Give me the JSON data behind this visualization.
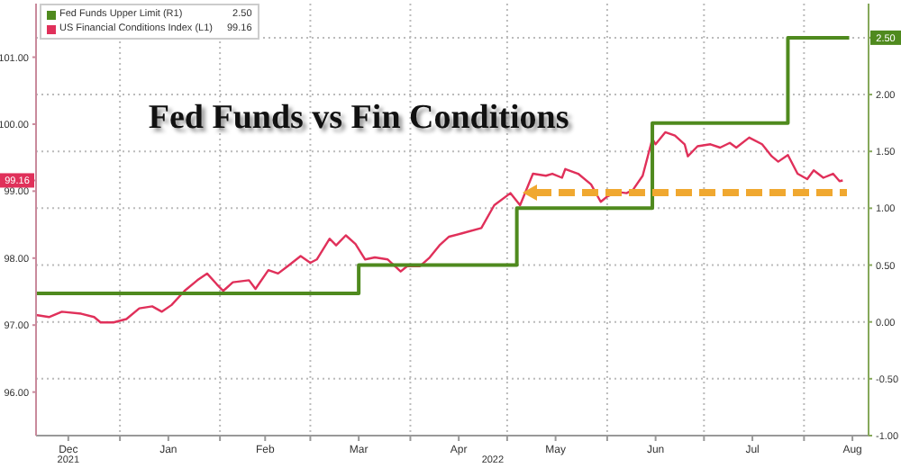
{
  "chart_data": {
    "type": "line",
    "title": "Fed Funds vs Fin Conditions",
    "annotations": [
      "2021",
      "2022"
    ],
    "xlim": [
      "2021-12-06",
      "2022-08-21"
    ],
    "xticks": [
      {
        "value": "2021-12-16",
        "label": "Dec"
      },
      {
        "value": "2022-01-01",
        "label": null
      },
      {
        "value": "2022-01-16",
        "label": "Jan"
      },
      {
        "value": "2022-02-01",
        "label": null
      },
      {
        "value": "2022-02-15",
        "label": "Feb"
      },
      {
        "value": "2022-03-01",
        "label": null
      },
      {
        "value": "2022-03-16",
        "label": "Mar"
      },
      {
        "value": "2022-04-01",
        "label": null
      },
      {
        "value": "2022-04-16",
        "label": "Apr"
      },
      {
        "value": "2022-05-01",
        "label": null
      },
      {
        "value": "2022-05-16",
        "label": "May"
      },
      {
        "value": "2022-06-01",
        "label": null
      },
      {
        "value": "2022-06-16",
        "label": "Jun"
      },
      {
        "value": "2022-07-01",
        "label": null
      },
      {
        "value": "2022-07-16",
        "label": "Jul"
      },
      {
        "value": "2022-08-01",
        "label": null
      },
      {
        "value": "2022-08-16",
        "label": "Aug"
      }
    ],
    "ylim": [
      95.35,
      101.8
    ],
    "yticks": [
      {
        "value": 96,
        "label": "96.00"
      },
      {
        "value": 97,
        "label": "97.00"
      },
      {
        "value": 98,
        "label": "98.00"
      },
      {
        "value": 99,
        "label": "99.00"
      },
      {
        "value": 99.16,
        "label": "99.16"
      },
      {
        "value": 100,
        "label": "100.00"
      },
      {
        "value": 101,
        "label": "101.00"
      }
    ],
    "y2lim": [
      -1,
      2.8
    ],
    "y2ticks": [
      {
        "value": -1,
        "label": "-1.00"
      },
      {
        "value": -0.5,
        "label": "-0.50"
      },
      {
        "value": 0,
        "label": "0.00"
      },
      {
        "value": 0.5,
        "label": "0.50"
      },
      {
        "value": 1,
        "label": "1.00"
      },
      {
        "value": 1.5,
        "label": "1.50"
      },
      {
        "value": 2,
        "label": "2.00"
      },
      {
        "value": 2.5,
        "label": "2.50"
      }
    ],
    "grid": true,
    "legend": "top left",
    "marker": "none",
    "series": [
      {
        "name": "Fed Funds Upper Limit (R1)",
        "type": "step",
        "axis": "y2",
        "color": "#4f8a1e",
        "x": [
          "2021-12-06",
          "2022-03-16",
          "2022-05-04",
          "2022-06-15",
          "2022-07-27",
          "2022-08-15"
        ],
        "values": [
          0.25,
          0.5,
          1.0,
          1.75,
          2.5,
          2.5
        ]
      },
      {
        "name": "US Financial Conditions Index (L1)",
        "type": "line",
        "axis": "y",
        "color": "#e0305a",
        "x": [
          "2021-12-06",
          "2021-12-10",
          "2021-12-14",
          "2021-12-20",
          "2021-12-24",
          "2021-12-26",
          "2021-12-30",
          "2022-01-03",
          "2022-01-07",
          "2022-01-11",
          "2022-01-14",
          "2022-01-17",
          "2022-01-21",
          "2022-01-25",
          "2022-01-28",
          "2022-01-31",
          "2022-02-02",
          "2022-02-05",
          "2022-02-10",
          "2022-02-12",
          "2022-02-16",
          "2022-02-19",
          "2022-02-22",
          "2022-02-26",
          "2022-03-01",
          "2022-03-03",
          "2022-03-07",
          "2022-03-09",
          "2022-03-12",
          "2022-03-15",
          "2022-03-18",
          "2022-03-21",
          "2022-03-25",
          "2022-03-29",
          "2022-03-31",
          "2022-04-04",
          "2022-04-07",
          "2022-04-10",
          "2022-04-13",
          "2022-04-17",
          "2022-04-23",
          "2022-04-27",
          "2022-05-02",
          "2022-05-05",
          "2022-05-09",
          "2022-05-13",
          "2022-05-15",
          "2022-05-18",
          "2022-05-19",
          "2022-05-23",
          "2022-05-27",
          "2022-05-30",
          "2022-06-01",
          "2022-06-04",
          "2022-06-07",
          "2022-06-09",
          "2022-06-12",
          "2022-06-15",
          "2022-06-16",
          "2022-06-19",
          "2022-06-22",
          "2022-06-25",
          "2022-06-26",
          "2022-06-29",
          "2022-07-03",
          "2022-07-06",
          "2022-07-09",
          "2022-07-11",
          "2022-07-15",
          "2022-07-19",
          "2022-07-22",
          "2022-07-24",
          "2022-07-27",
          "2022-07-30",
          "2022-08-02",
          "2022-08-04",
          "2022-08-07",
          "2022-08-10",
          "2022-08-12",
          "2022-08-13"
        ],
        "values": [
          97.15,
          97.12,
          97.2,
          97.17,
          97.12,
          97.04,
          97.04,
          97.09,
          97.25,
          97.28,
          97.2,
          97.3,
          97.51,
          97.67,
          97.77,
          97.61,
          97.51,
          97.64,
          97.67,
          97.54,
          97.82,
          97.77,
          97.88,
          98.03,
          97.93,
          97.98,
          98.29,
          98.19,
          98.34,
          98.21,
          97.98,
          98.01,
          97.98,
          97.8,
          97.88,
          97.88,
          98.01,
          98.19,
          98.32,
          98.37,
          98.45,
          98.79,
          98.97,
          98.79,
          99.26,
          99.23,
          99.26,
          99.2,
          99.33,
          99.26,
          99.1,
          98.84,
          98.92,
          98.99,
          98.97,
          99.02,
          99.23,
          99.78,
          99.7,
          99.88,
          99.83,
          99.7,
          99.52,
          99.67,
          99.7,
          99.65,
          99.72,
          99.65,
          99.8,
          99.7,
          99.52,
          99.44,
          99.54,
          99.26,
          99.18,
          99.31,
          99.2,
          99.26,
          99.15,
          99.16
        ]
      }
    ]
  }
}
